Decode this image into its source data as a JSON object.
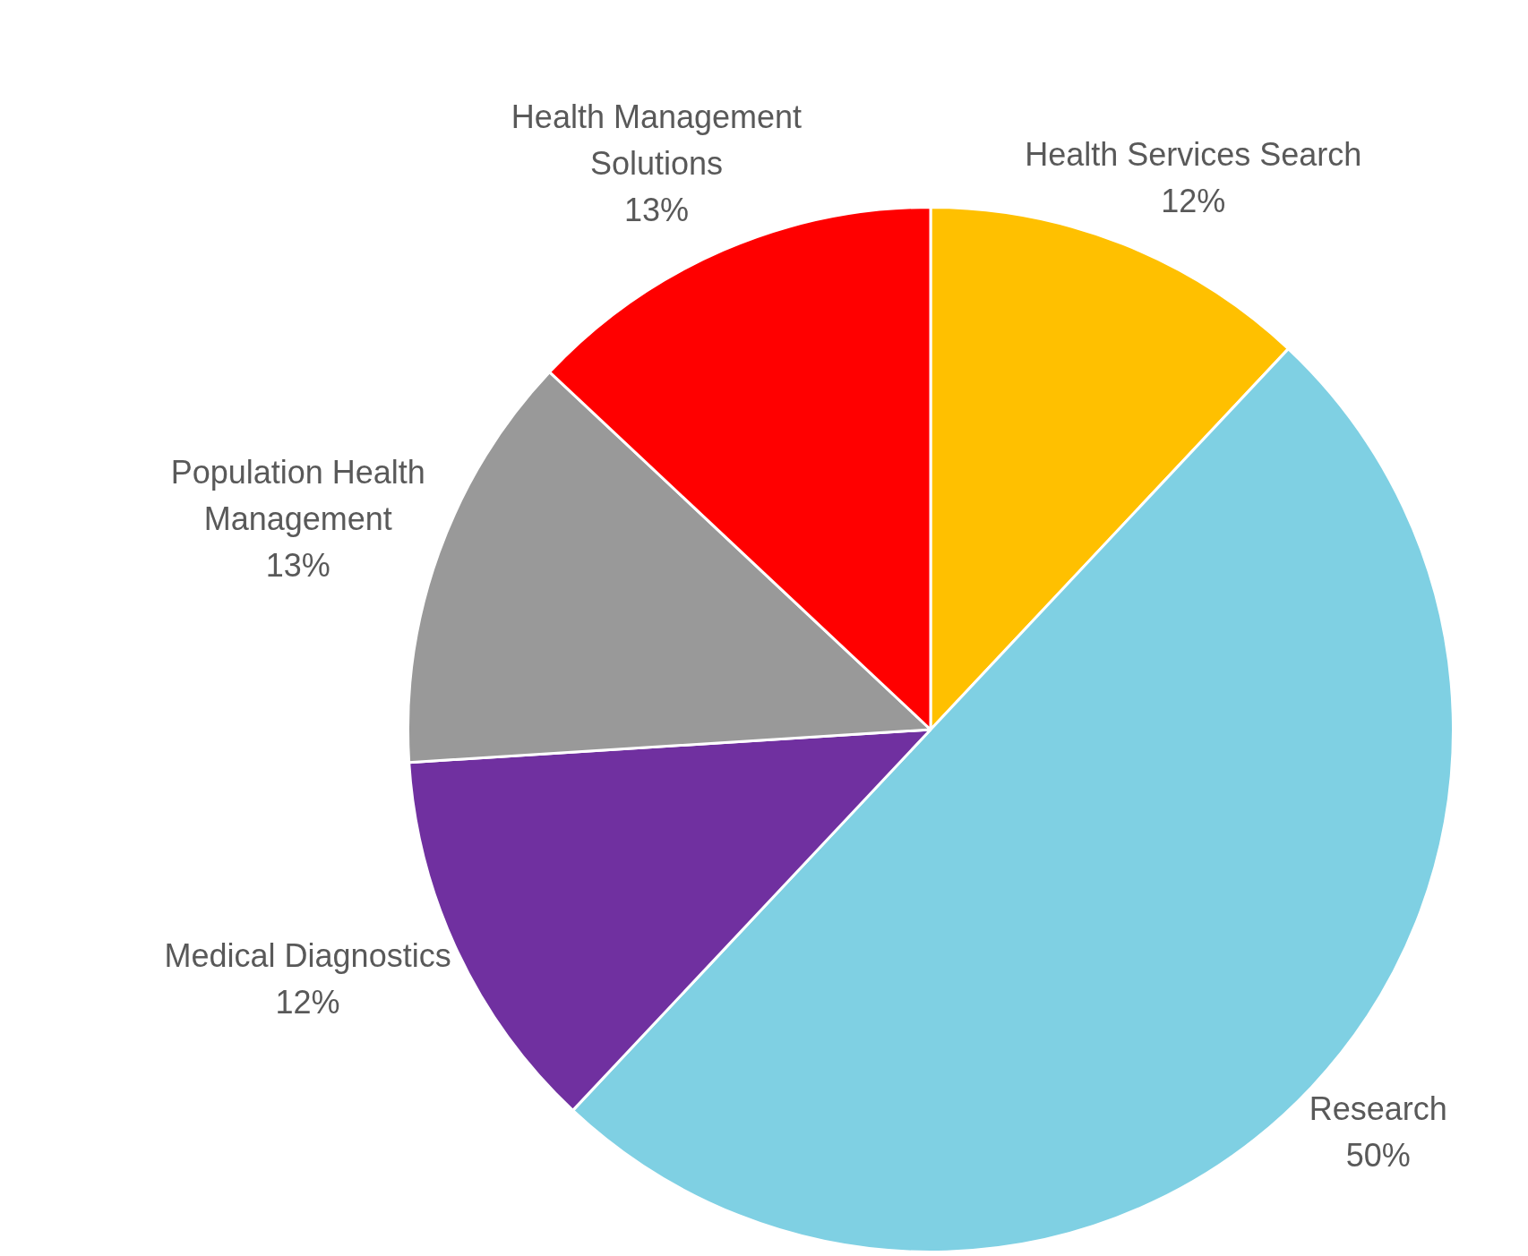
{
  "chart_data": {
    "type": "pie",
    "categories": [
      "Health Services Search",
      "Research",
      "Medical Diagnostics",
      "Population Health Management",
      "Health Management Solutions"
    ],
    "values": [
      12,
      50,
      12,
      13,
      13
    ],
    "colors": [
      "#ffc000",
      "#7fd0e3",
      "#7030a0",
      "#999999",
      "#ff0000"
    ],
    "value_labels": [
      "12%",
      "50%",
      "12%",
      "13%",
      "13%"
    ],
    "legend": false
  }
}
